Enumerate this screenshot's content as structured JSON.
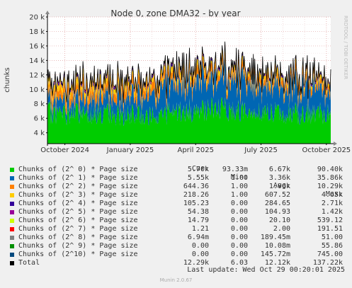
{
  "chart_data": {
    "type": "area",
    "stacked": true,
    "title": "Node 0, zone DMA32 - by year",
    "ylabel": "chunks",
    "ylim": [
      2500,
      20000
    ],
    "yticks": [
      4000,
      6000,
      8000,
      10000,
      12000,
      14000,
      16000,
      18000,
      20000
    ],
    "ytick_labels": [
      "4 k",
      "6 k",
      "8 k",
      "10 k",
      "12 k",
      "14 k",
      "16 k",
      "18 k",
      "20 k"
    ],
    "x_labels": [
      "October 2024",
      "January 2025",
      "April 2025",
      "July 2025",
      "October 2025"
    ],
    "x_label_months": [
      1,
      4,
      7,
      10,
      13
    ],
    "x_range_months": [
      0.2,
      13.2
    ],
    "grid": true,
    "legend_position": "bottom",
    "side_text": "RRDTOOL / TOBI OETIKER",
    "legend_headers": [
      "Cur:",
      "Min:",
      "Avg:",
      "Max:"
    ],
    "series": [
      {
        "name": "Chunks of (2^ 0) * Page size",
        "color": "#00cc00",
        "cur": "5.70k",
        "min": "93.33m",
        "avg": "6.67k",
        "max": "90.40k",
        "approx_mean_by_month": [
          [
            0.2,
            6500
          ],
          [
            1,
            6400
          ],
          [
            2,
            6600
          ],
          [
            3,
            6400
          ],
          [
            4,
            6200
          ],
          [
            5,
            6300
          ],
          [
            6,
            6600
          ],
          [
            7,
            7000
          ],
          [
            8,
            7000
          ],
          [
            9,
            6900
          ],
          [
            10,
            6700
          ],
          [
            11,
            6400
          ],
          [
            12,
            6500
          ],
          [
            13.2,
            6400
          ]
        ]
      },
      {
        "name": "Chunks of (2^ 1) * Page size",
        "color": "#0066b3",
        "cur": "5.55k",
        "min": "1.00",
        "avg": "3.36k",
        "max": "35.86k",
        "approx_mean_by_month": [
          [
            0.2,
            1500
          ],
          [
            1,
            1700
          ],
          [
            2,
            2000
          ],
          [
            3,
            2300
          ],
          [
            4,
            2600
          ],
          [
            5,
            3000
          ],
          [
            6,
            3600
          ],
          [
            7,
            4200
          ],
          [
            8,
            4100
          ],
          [
            9,
            4000
          ],
          [
            10,
            3800
          ],
          [
            11,
            3700
          ],
          [
            12,
            3400
          ],
          [
            13.2,
            3200
          ]
        ]
      },
      {
        "name": "Chunks of (2^ 2) * Page size",
        "color": "#ff8000",
        "cur": "644.36",
        "min": "1.00",
        "avg": "1.06k",
        "max": "10.29k",
        "approx_mean_by_month": [
          [
            0.2,
            1200
          ],
          [
            1,
            1200
          ],
          [
            2,
            1300
          ],
          [
            3,
            1200
          ],
          [
            4,
            1100
          ],
          [
            5,
            1100
          ],
          [
            6,
            1000
          ],
          [
            7,
            1000
          ],
          [
            8,
            900
          ],
          [
            9,
            900
          ],
          [
            10,
            900
          ],
          [
            11,
            900
          ],
          [
            12,
            850
          ],
          [
            13.2,
            800
          ]
        ]
      },
      {
        "name": "Chunks of (2^ 3) * Page size",
        "color": "#ffcc00",
        "cur": "218.26",
        "min": "1.00",
        "avg": "607.52",
        "max": "4.65k",
        "approx_mean_by_month": [
          [
            0.2,
            700
          ],
          [
            1,
            700
          ],
          [
            2,
            750
          ],
          [
            3,
            700
          ],
          [
            4,
            650
          ],
          [
            5,
            600
          ],
          [
            6,
            600
          ],
          [
            7,
            550
          ],
          [
            8,
            550
          ],
          [
            9,
            500
          ],
          [
            10,
            500
          ],
          [
            11,
            500
          ],
          [
            12,
            450
          ],
          [
            13.2,
            400
          ]
        ]
      },
      {
        "name": "Chunks of (2^ 4) * Page size",
        "color": "#330099",
        "cur": "105.23",
        "min": "0.00",
        "avg": "284.65",
        "max": "2.71k",
        "approx_mean_by_month": [
          [
            0.2,
            320
          ],
          [
            1,
            320
          ],
          [
            2,
            330
          ],
          [
            3,
            320
          ],
          [
            4,
            300
          ],
          [
            5,
            290
          ],
          [
            6,
            280
          ],
          [
            7,
            270
          ],
          [
            8,
            260
          ],
          [
            9,
            250
          ],
          [
            10,
            250
          ],
          [
            11,
            240
          ],
          [
            12,
            230
          ],
          [
            13.2,
            220
          ]
        ]
      },
      {
        "name": "Chunks of (2^ 5) * Page size",
        "color": "#990099",
        "cur": "54.38",
        "min": "0.00",
        "avg": "104.93",
        "max": "1.42k",
        "approx_mean_by_month": [
          [
            0.2,
            120
          ],
          [
            1,
            120
          ],
          [
            2,
            120
          ],
          [
            3,
            115
          ],
          [
            4,
            110
          ],
          [
            5,
            105
          ],
          [
            6,
            100
          ],
          [
            7,
            100
          ],
          [
            8,
            95
          ],
          [
            9,
            95
          ],
          [
            10,
            90
          ],
          [
            11,
            90
          ],
          [
            12,
            85
          ],
          [
            13.2,
            80
          ]
        ]
      },
      {
        "name": "Chunks of (2^ 6) * Page size",
        "color": "#ccff00",
        "cur": "14.79",
        "min": "0.00",
        "avg": "20.10",
        "max": "539.12",
        "approx_mean_by_month": [
          [
            0.2,
            25
          ],
          [
            1,
            25
          ],
          [
            2,
            24
          ],
          [
            3,
            22
          ],
          [
            4,
            21
          ],
          [
            5,
            20
          ],
          [
            6,
            20
          ],
          [
            7,
            19
          ],
          [
            8,
            18
          ],
          [
            9,
            18
          ],
          [
            10,
            17
          ],
          [
            11,
            17
          ],
          [
            12,
            16
          ],
          [
            13.2,
            15
          ]
        ]
      },
      {
        "name": "Chunks of (2^ 7) * Page size",
        "color": "#ff0000",
        "cur": "1.21",
        "min": "0.00",
        "avg": "2.00",
        "max": "191.51",
        "approx_mean_by_month": [
          [
            0.2,
            3
          ],
          [
            1,
            3
          ],
          [
            2,
            2
          ],
          [
            3,
            2
          ],
          [
            4,
            2
          ],
          [
            5,
            2
          ],
          [
            6,
            2
          ],
          [
            7,
            2
          ],
          [
            8,
            2
          ],
          [
            9,
            2
          ],
          [
            10,
            2
          ],
          [
            11,
            2
          ],
          [
            12,
            1
          ],
          [
            13.2,
            1
          ]
        ]
      },
      {
        "name": "Chunks of (2^ 8) * Page size",
        "color": "#808080",
        "cur": "6.94m",
        "min": "0.00",
        "avg": "189.45m",
        "max": "51.00",
        "approx_mean_by_month": []
      },
      {
        "name": "Chunks of (2^ 9) * Page size",
        "color": "#008f00",
        "cur": "0.00",
        "min": "0.00",
        "avg": "10.08m",
        "max": "55.86",
        "approx_mean_by_month": []
      },
      {
        "name": "Chunks of (2^10) * Page size",
        "color": "#00487d",
        "cur": "0.00",
        "min": "0.00",
        "avg": "145.72m",
        "max": "745.00",
        "approx_mean_by_month": []
      },
      {
        "name": "Total",
        "color": "#000000",
        "is_total": true,
        "cur": "12.29k",
        "min": "6.03",
        "avg": "12.12k",
        "max": "137.22k"
      }
    ]
  },
  "last_update": "Last update: Wed Oct 29 00:20:01 2025",
  "footer": "Munin 2.0.67"
}
